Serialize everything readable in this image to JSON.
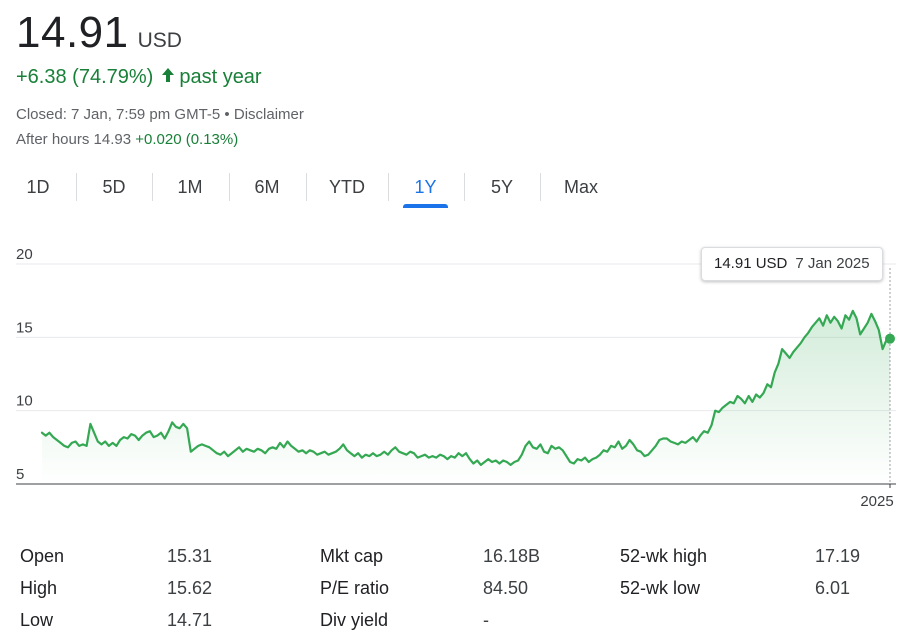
{
  "quote": {
    "price": "14.91",
    "currency": "USD",
    "change": "+6.38 (74.79%)",
    "change_period": "past year",
    "closed": "Closed: 7 Jan, 7:59 pm GMT-5",
    "separator": " • ",
    "disclaimer": "Disclaimer",
    "after_hours_label": "After hours 14.93",
    "after_hours_change": "+0.020 (0.13%)"
  },
  "tabs": [
    {
      "label": "1D"
    },
    {
      "label": "5D"
    },
    {
      "label": "1M"
    },
    {
      "label": "6M"
    },
    {
      "label": "YTD"
    },
    {
      "label": "1Y",
      "active": true
    },
    {
      "label": "5Y"
    },
    {
      "label": "Max"
    }
  ],
  "tooltip": {
    "value": "14.91 USD",
    "date": "7 Jan 2025"
  },
  "colors": {
    "line": "#34a853",
    "positive": "#188038",
    "accent": "#1a73e8"
  },
  "chart_data": {
    "type": "area",
    "x_tick_labels": [
      "2025"
    ],
    "y_ticks": [
      5,
      10,
      15,
      20
    ],
    "ylim": [
      5,
      20
    ],
    "grid": true,
    "values": [
      8.5,
      8.3,
      8.5,
      8.2,
      8.0,
      7.8,
      7.6,
      7.5,
      7.8,
      7.9,
      7.6,
      7.7,
      7.6,
      9.1,
      8.5,
      7.9,
      7.7,
      7.9,
      7.6,
      7.8,
      7.6,
      8.0,
      8.2,
      8.1,
      8.4,
      8.3,
      8.0,
      8.3,
      8.5,
      8.6,
      8.2,
      8.3,
      8.5,
      8.1,
      8.6,
      9.2,
      8.9,
      8.8,
      9.1,
      8.8,
      7.2,
      7.4,
      7.6,
      7.7,
      7.6,
      7.5,
      7.3,
      7.1,
      7.0,
      7.2,
      6.9,
      7.1,
      7.3,
      7.5,
      7.2,
      7.4,
      7.3,
      7.2,
      7.4,
      7.3,
      7.1,
      7.4,
      7.5,
      7.4,
      7.8,
      7.5,
      7.9,
      7.6,
      7.4,
      7.2,
      7.3,
      7.1,
      7.3,
      7.2,
      7.0,
      7.1,
      7.2,
      7.0,
      7.1,
      7.2,
      7.4,
      7.7,
      7.3,
      7.1,
      6.9,
      7.1,
      6.8,
      7.0,
      6.9,
      7.1,
      6.9,
      7.0,
      7.2,
      7.0,
      7.3,
      7.5,
      7.2,
      7.1,
      7.0,
      7.2,
      7.1,
      6.8,
      6.9,
      7.0,
      6.8,
      6.9,
      6.8,
      7.0,
      6.9,
      6.7,
      6.9,
      6.8,
      7.1,
      6.9,
      7.1,
      6.7,
      6.4,
      6.6,
      6.3,
      6.5,
      6.7,
      6.5,
      6.6,
      6.4,
      6.6,
      6.5,
      6.3,
      6.5,
      6.6,
      7.0,
      7.6,
      7.9,
      7.5,
      7.4,
      7.7,
      7.2,
      7.1,
      7.6,
      7.4,
      7.5,
      7.3,
      6.9,
      6.5,
      6.4,
      6.7,
      6.6,
      6.8,
      6.5,
      6.7,
      6.8,
      7.0,
      7.3,
      7.2,
      7.6,
      7.5,
      7.9,
      7.4,
      7.6,
      8.0,
      7.7,
      7.3,
      7.2,
      6.9,
      7.0,
      7.3,
      7.6,
      8.0,
      8.1,
      8.1,
      7.9,
      7.8,
      7.7,
      7.9,
      7.8,
      8.0,
      8.2,
      7.9,
      8.3,
      8.6,
      8.5,
      9.0,
      10.0,
      9.9,
      10.2,
      10.4,
      10.6,
      10.5,
      11.0,
      10.8,
      10.5,
      11.0,
      10.6,
      11.1,
      10.9,
      11.2,
      11.8,
      11.6,
      12.6,
      13.2,
      14.2,
      13.9,
      13.6,
      14.0,
      14.3,
      14.6,
      15.0,
      15.3,
      15.7,
      16.0,
      16.3,
      15.8,
      16.5,
      16.0,
      16.4,
      16.1,
      15.6,
      16.5,
      16.2,
      16.8,
      16.3,
      15.2,
      15.6,
      16.0,
      16.6,
      16.1,
      15.5,
      14.2,
      14.8,
      14.91
    ]
  },
  "stats": [
    [
      {
        "label": "Open",
        "value": "15.31"
      },
      {
        "label": "Mkt cap",
        "value": "16.18B"
      },
      {
        "label": "52-wk high",
        "value": "17.19"
      }
    ],
    [
      {
        "label": "High",
        "value": "15.62"
      },
      {
        "label": "P/E ratio",
        "value": "84.50"
      },
      {
        "label": "52-wk low",
        "value": "6.01"
      }
    ],
    [
      {
        "label": "Low",
        "value": "14.71"
      },
      {
        "label": "Div yield",
        "value": "-"
      }
    ]
  ]
}
